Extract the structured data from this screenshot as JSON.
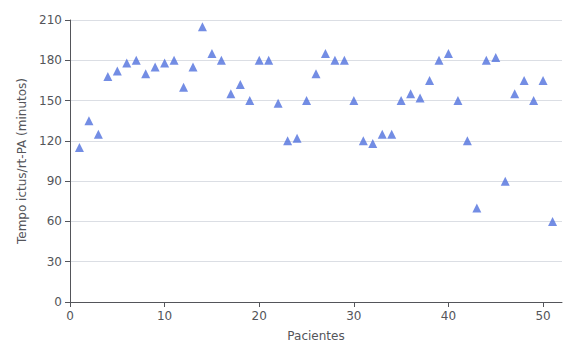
{
  "chart_data": {
    "type": "scatter",
    "xlabel": "Pacientes",
    "ylabel": "Tempo ictus/rt-PA (minutos)",
    "x": [
      1,
      2,
      3,
      4,
      5,
      6,
      7,
      8,
      9,
      10,
      11,
      12,
      13,
      14,
      15,
      16,
      17,
      18,
      19,
      20,
      21,
      22,
      23,
      24,
      25,
      26,
      27,
      28,
      29,
      30,
      31,
      32,
      33,
      34,
      35,
      36,
      37,
      38,
      39,
      40,
      41,
      42,
      43,
      44,
      45,
      46,
      47,
      48,
      49,
      50,
      51
    ],
    "values": [
      115,
      135,
      125,
      168,
      172,
      178,
      180,
      170,
      175,
      178,
      180,
      160,
      175,
      205,
      185,
      180,
      155,
      162,
      150,
      180,
      180,
      148,
      120,
      122,
      150,
      170,
      185,
      180,
      180,
      150,
      120,
      118,
      125,
      125,
      150,
      155,
      152,
      165,
      180,
      185,
      150,
      120,
      70,
      180,
      182,
      90,
      155,
      165,
      150,
      165,
      60
    ],
    "xlim": [
      0,
      52
    ],
    "xticks": [
      0,
      10,
      20,
      30,
      40,
      50
    ],
    "ylim": [
      0,
      210
    ],
    "yticks": [
      0,
      30,
      60,
      90,
      120,
      150,
      180,
      210
    ],
    "marker": "triangle",
    "grid": true
  }
}
